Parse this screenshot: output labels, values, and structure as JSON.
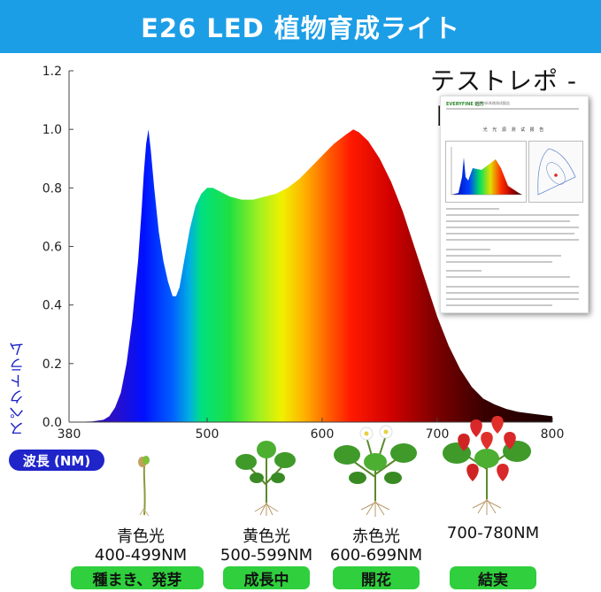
{
  "banner": {
    "title": "E26 LED 植物育成ライト"
  },
  "report": {
    "title": "テストレポ - ト"
  },
  "doc": {
    "brand": "EVERYFINE 远方",
    "header": "光谱分析系统测试报告",
    "title": "光 光 源 测 试 报 告"
  },
  "chart_data": {
    "type": "area",
    "title": "",
    "xlabel": "波長 (NM)",
    "ylabel": "スペクトラム",
    "xlim": [
      380,
      800
    ],
    "ylim": [
      0,
      1.2
    ],
    "x_ticks": [
      "380",
      "500",
      "600",
      "700",
      "800"
    ],
    "y_ticks": [
      "0.0",
      "0.2",
      "0.4",
      "0.6",
      "0.8",
      "1.0",
      "1.2"
    ],
    "grid": false,
    "points": [
      [
        380,
        0.0
      ],
      [
        400,
        0.002
      ],
      [
        410,
        0.008
      ],
      [
        415,
        0.02
      ],
      [
        420,
        0.05
      ],
      [
        425,
        0.1
      ],
      [
        430,
        0.2
      ],
      [
        435,
        0.35
      ],
      [
        440,
        0.55
      ],
      [
        443,
        0.72
      ],
      [
        445,
        0.85
      ],
      [
        447,
        0.95
      ],
      [
        449,
        1.0
      ],
      [
        451,
        0.93
      ],
      [
        454,
        0.8
      ],
      [
        458,
        0.65
      ],
      [
        462,
        0.55
      ],
      [
        466,
        0.48
      ],
      [
        470,
        0.43
      ],
      [
        473,
        0.43
      ],
      [
        476,
        0.46
      ],
      [
        480,
        0.55
      ],
      [
        485,
        0.66
      ],
      [
        490,
        0.74
      ],
      [
        495,
        0.78
      ],
      [
        500,
        0.8
      ],
      [
        505,
        0.8
      ],
      [
        510,
        0.79
      ],
      [
        520,
        0.77
      ],
      [
        530,
        0.76
      ],
      [
        540,
        0.76
      ],
      [
        550,
        0.77
      ],
      [
        560,
        0.78
      ],
      [
        570,
        0.8
      ],
      [
        580,
        0.83
      ],
      [
        590,
        0.87
      ],
      [
        600,
        0.91
      ],
      [
        610,
        0.95
      ],
      [
        620,
        0.98
      ],
      [
        627,
        1.0
      ],
      [
        632,
        0.99
      ],
      [
        640,
        0.96
      ],
      [
        650,
        0.9
      ],
      [
        660,
        0.82
      ],
      [
        670,
        0.72
      ],
      [
        680,
        0.6
      ],
      [
        690,
        0.48
      ],
      [
        700,
        0.36
      ],
      [
        710,
        0.26
      ],
      [
        720,
        0.18
      ],
      [
        730,
        0.12
      ],
      [
        740,
        0.08
      ],
      [
        750,
        0.06
      ],
      [
        760,
        0.045
      ],
      [
        770,
        0.035
      ],
      [
        780,
        0.03
      ],
      [
        790,
        0.025
      ],
      [
        800,
        0.02
      ]
    ]
  },
  "axis": {
    "ylabel": "スペクトラム",
    "wavelength_label": "波長 (NM)"
  },
  "stages": [
    {
      "label": "青色光",
      "range": "400-499NM",
      "badge": "種まき、発芽"
    },
    {
      "label": "黄色光",
      "range": "500-599NM",
      "badge": "成長中"
    },
    {
      "label": "赤色光",
      "range": "600-699NM",
      "badge": "開花"
    },
    {
      "label": "",
      "range": "700-780NM",
      "badge": "結実"
    }
  ],
  "colors": {
    "banner": "#1c9ee6",
    "badge_green": "#2fcf3d",
    "badge_blue": "#1f25c9",
    "ylabel": "#1a22c8"
  }
}
